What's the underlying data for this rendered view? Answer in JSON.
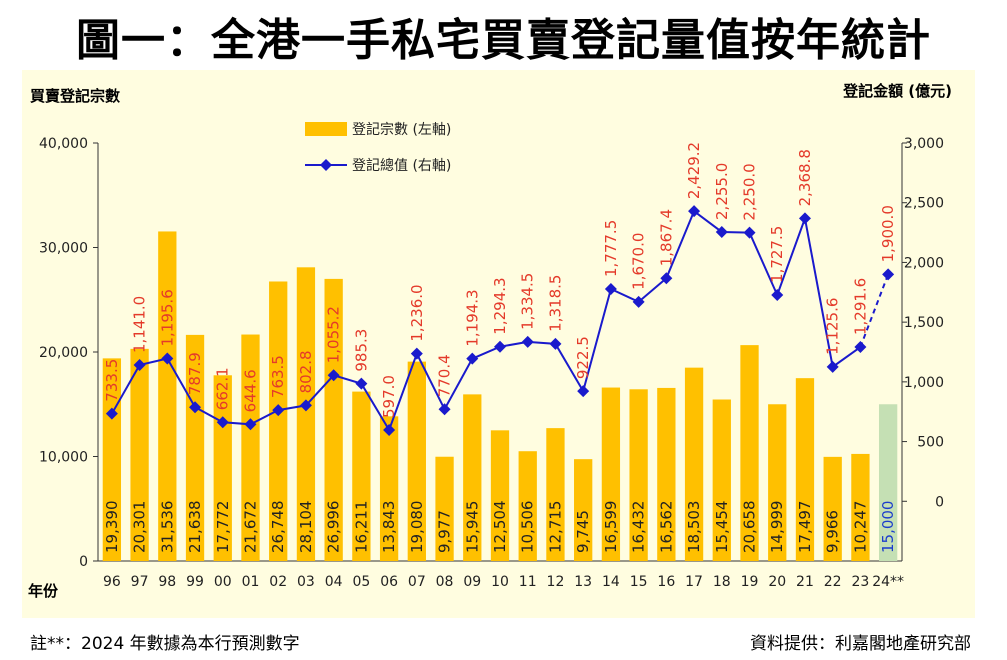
{
  "title": "圖一：全港一手私宅買賣登記量值按年統計",
  "footer": {
    "note": "註**：2024 年數據為本行預測數字",
    "source": "資料提供：利嘉閣地產研究部"
  },
  "colors": {
    "bar": "#ffc000",
    "bar_forecast": "#c5e0b4",
    "line": "#1a1acc",
    "line_label": "#e43a2a",
    "panel_bg": "#fffde0"
  },
  "chart_data": {
    "type": "bar",
    "title": "圖一：全港一手私宅買賣登記量值按年統計",
    "ylabel": "買賣登記宗數",
    "y2label": "登記金額 (億元)",
    "xlabel": "年份",
    "ylim": [
      0,
      40000
    ],
    "y2lim": [
      -500,
      3000
    ],
    "yticks": [
      "0",
      "10,000",
      "20,000",
      "30,000",
      "40,000"
    ],
    "y2ticks": [
      "0",
      "500",
      "1,000",
      "1,500",
      "2,000",
      "2,500",
      "3,000"
    ],
    "categories": [
      "96",
      "97",
      "98",
      "99",
      "00",
      "01",
      "02",
      "03",
      "04",
      "05",
      "06",
      "07",
      "08",
      "09",
      "10",
      "11",
      "12",
      "13",
      "14",
      "15",
      "16",
      "17",
      "18",
      "19",
      "20",
      "21",
      "22",
      "23",
      "24**"
    ],
    "series": [
      {
        "name": "登記宗數 (左軸)",
        "type": "bar",
        "axis": "left",
        "values": [
          19390,
          20301,
          31536,
          21638,
          17772,
          21672,
          26748,
          28104,
          26996,
          16211,
          13843,
          19080,
          9977,
          15945,
          12504,
          10506,
          12715,
          9745,
          16599,
          16432,
          16562,
          18503,
          15454,
          20658,
          14999,
          17497,
          9966,
          10247,
          15000
        ],
        "labels": [
          "19,390",
          "20,301",
          "31,536",
          "21,638",
          "17,772",
          "21,672",
          "26,748",
          "28,104",
          "26,996",
          "16,211",
          "13,843",
          "19,080",
          "9,977",
          "15,945",
          "12,504",
          "10,506",
          "12,715",
          "9,745",
          "16,599",
          "16,432",
          "16,562",
          "18,503",
          "15,454",
          "20,658",
          "14,999",
          "17,497",
          "9,966",
          "10,247",
          "15,000"
        ]
      },
      {
        "name": "登記總值 (右軸)",
        "type": "line",
        "axis": "right",
        "values": [
          733.5,
          1141.0,
          1195.6,
          787.9,
          662.1,
          644.6,
          763.5,
          802.8,
          1055.2,
          985.3,
          597.0,
          1236.0,
          770.4,
          1194.3,
          1294.3,
          1334.5,
          1318.5,
          922.5,
          1777.5,
          1670.0,
          1867.4,
          2429.2,
          2255.0,
          2250.0,
          1727.5,
          2368.8,
          1125.6,
          1291.6,
          1900.0
        ],
        "labels": [
          "733.5",
          "1,141.0",
          "1,195.6",
          "787.9",
          "662.1",
          "644.6",
          "763.5",
          "802.8",
          "1,055.2",
          "985.3",
          "597.0",
          "1,236.0",
          "770.4",
          "1,194.3",
          "1,294.3",
          "1,334.5",
          "1,318.5",
          "922.5",
          "1,777.5",
          "1,670.0",
          "1,867.4",
          "2,429.2",
          "2,255.0",
          "2,250.0",
          "1,727.5",
          "2,368.8",
          "1,125.6",
          "1,291.6",
          "1,900.0"
        ]
      }
    ],
    "forecast_index": 28,
    "legend": "top-left"
  }
}
